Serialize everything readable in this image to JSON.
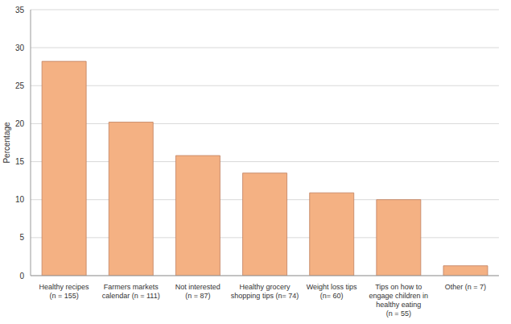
{
  "chart_data": {
    "type": "bar",
    "y_label": "Percentage",
    "categories": [
      "Healthy recipes\n(n = 155)",
      "Farmers markets\ncalendar (n = 111)",
      "Not interested\n(n = 87)",
      "Healthy grocery\nshopping tips (n= 74)",
      "Weight loss tips\n(n= 60)",
      "Tips on how to\nengage children in\nhealthy eating\n(n = 55)",
      "Other (n = 7)"
    ],
    "values": [
      28.2,
      20.2,
      15.8,
      13.5,
      10.9,
      10.0,
      1.3
    ],
    "color": "#f4b183",
    "ylim": [
      0,
      35
    ],
    "yticks": [
      0,
      5,
      10,
      15,
      20,
      25,
      30,
      35
    ],
    "grid": true
  }
}
